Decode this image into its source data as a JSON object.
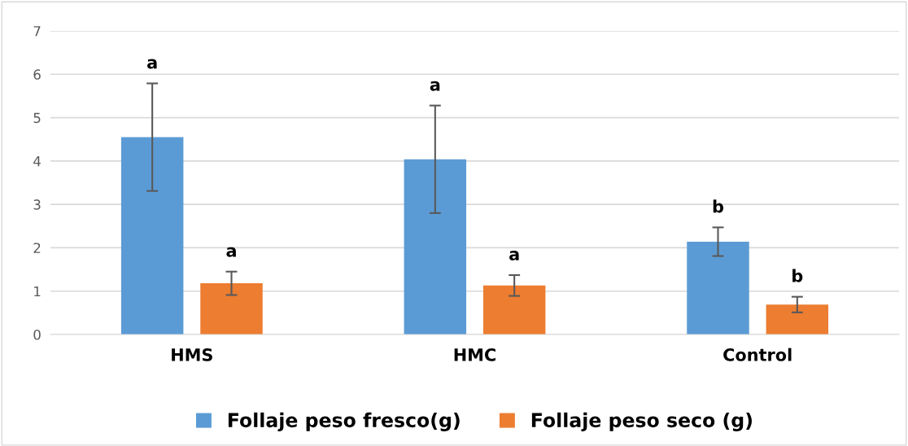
{
  "chart_data": {
    "type": "bar",
    "categories": [
      "HMS",
      "HMC",
      "Control"
    ],
    "series": [
      {
        "name": "Follaje peso fresco(g)",
        "color": "#5b9bd5",
        "values": [
          4.55,
          4.04,
          2.14
        ],
        "errors": [
          1.24,
          1.24,
          0.33
        ]
      },
      {
        "name": "Follaje peso seco (g)",
        "color": "#ed7d31",
        "values": [
          1.18,
          1.13,
          0.69
        ],
        "errors": [
          0.27,
          0.24,
          0.18
        ]
      }
    ],
    "ylim": [
      0,
      7
    ],
    "yticks": [
      0,
      1,
      2,
      3,
      4,
      5,
      6,
      7
    ],
    "grid": "y",
    "legend": "bottom",
    "annotations": [
      "a",
      "a",
      "a",
      "a",
      "b",
      "b"
    ]
  }
}
